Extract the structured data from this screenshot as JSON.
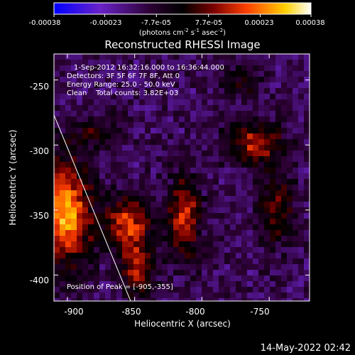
{
  "colorbar": {
    "tick_labels": [
      "-0.00038",
      "-0.00023",
      "-7.7e-05",
      "7.7e-05",
      "0.00023",
      "0.00038"
    ],
    "unit_parts": [
      "(photons cm",
      "-2",
      " s",
      "-1",
      " asec",
      "-2",
      ")"
    ],
    "range": [
      -0.00038,
      0.00038
    ],
    "colors": [
      "#0000ff",
      "#6a22c8",
      "#2a0030",
      "#000000",
      "#7a0000",
      "#ff4000",
      "#ffd000",
      "#ffffff"
    ]
  },
  "chart_data": {
    "type": "heatmap",
    "title": "Reconstructed RHESSI Image",
    "xlabel": "Heliocentric X (arcsec)",
    "ylabel": "Heliocentric Y (arcsec)",
    "xlim": [
      -910,
      -720
    ],
    "ylim": [
      -420,
      -230
    ],
    "x_ticks": [
      -900,
      -850,
      -800,
      -750
    ],
    "y_ticks": [
      -250,
      -300,
      -350,
      -400
    ],
    "x_tick_labels": [
      "-900",
      "-850",
      "-800",
      "-750"
    ],
    "y_tick_labels": [
      "-250",
      "-300",
      "-350",
      "-400"
    ],
    "annotations": [
      "1-Sep-2012 16:32:16.000 to 16:36:44.000",
      "Detectors: 3F 5F 6F 7F 8F, Att 0",
      "Energy Range: 25.0 - 50.0 keV",
      "Clean    Total counts: 3.82E+03"
    ],
    "peak_label": "Position of Peak = [-905,-355]",
    "peak": {
      "x": -905,
      "y": -355
    },
    "limb_line": [
      {
        "x": -910,
        "y": -277
      },
      {
        "x": -853,
        "y": -420
      }
    ],
    "sources": [
      {
        "x": -902,
        "y": -352,
        "sx": 14,
        "sy": 28,
        "amp": 0.0004
      },
      {
        "x": -855,
        "y": -360,
        "sx": 12,
        "sy": 14,
        "amp": 0.00028
      },
      {
        "x": -848,
        "y": -395,
        "sx": 10,
        "sy": 16,
        "amp": 0.00022
      },
      {
        "x": -813,
        "y": -355,
        "sx": 8,
        "sy": 22,
        "amp": 0.0003
      },
      {
        "x": -760,
        "y": -298,
        "sx": 15,
        "sy": 11,
        "amp": 0.00026
      },
      {
        "x": -745,
        "y": -350,
        "sx": 10,
        "sy": 20,
        "amp": 0.00018
      },
      {
        "x": -770,
        "y": -250,
        "sx": 10,
        "sy": 9,
        "amp": 0.00014
      },
      {
        "x": -880,
        "y": -290,
        "sx": 14,
        "sy": 8,
        "amp": 0.00012
      }
    ],
    "grid": false
  },
  "footer": {
    "timestamp": "14-May-2022 02:42"
  }
}
